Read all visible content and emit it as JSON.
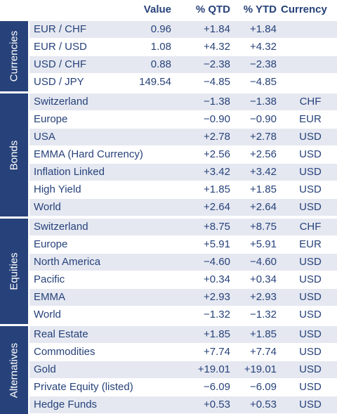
{
  "headers": {
    "value": "Value",
    "qtd": "% QTD",
    "ytd": "% YTD",
    "currency": "Currency"
  },
  "groups": [
    {
      "label": "Currencies",
      "rows": [
        {
          "name": "EUR / CHF",
          "value": "0.96",
          "qtd": "+1.84",
          "ytd": "+1.84",
          "currency": ""
        },
        {
          "name": "EUR / USD",
          "value": "1.08",
          "qtd": "+4.32",
          "ytd": "+4.32",
          "currency": ""
        },
        {
          "name": "USD / CHF",
          "value": "0.88",
          "qtd": "−2.38",
          "ytd": "−2.38",
          "currency": ""
        },
        {
          "name": "USD / JPY",
          "value": "149.54",
          "qtd": "−4.85",
          "ytd": "−4.85",
          "currency": ""
        }
      ]
    },
    {
      "label": "Bonds",
      "rows": [
        {
          "name": "Switzerland",
          "value": "",
          "qtd": "−1.38",
          "ytd": "−1.38",
          "currency": "CHF"
        },
        {
          "name": "Europe",
          "value": "",
          "qtd": "−0.90",
          "ytd": "−0.90",
          "currency": "EUR"
        },
        {
          "name": "USA",
          "value": "",
          "qtd": "+2.78",
          "ytd": "+2.78",
          "currency": "USD"
        },
        {
          "name": "EMMA (Hard Currency)",
          "value": "",
          "qtd": "+2.56",
          "ytd": "+2.56",
          "currency": "USD"
        },
        {
          "name": "Inflation Linked",
          "value": "",
          "qtd": "+3.42",
          "ytd": "+3.42",
          "currency": "USD"
        },
        {
          "name": "High Yield",
          "value": "",
          "qtd": "+1.85",
          "ytd": "+1.85",
          "currency": "USD"
        },
        {
          "name": "World",
          "value": "",
          "qtd": "+2.64",
          "ytd": "+2.64",
          "currency": "USD"
        }
      ]
    },
    {
      "label": "Equities",
      "rows": [
        {
          "name": "Switzerland",
          "value": "",
          "qtd": "+8.75",
          "ytd": "+8.75",
          "currency": "CHF"
        },
        {
          "name": "Europe",
          "value": "",
          "qtd": "+5.91",
          "ytd": "+5.91",
          "currency": "EUR"
        },
        {
          "name": "North America",
          "value": "",
          "qtd": "−4.60",
          "ytd": "−4.60",
          "currency": "USD"
        },
        {
          "name": "Pacific",
          "value": "",
          "qtd": "+0.34",
          "ytd": "+0.34",
          "currency": "USD"
        },
        {
          "name": "EMMA",
          "value": "",
          "qtd": "+2.93",
          "ytd": "+2.93",
          "currency": "USD"
        },
        {
          "name": "World",
          "value": "",
          "qtd": "−1.32",
          "ytd": "−1.32",
          "currency": "USD"
        }
      ]
    },
    {
      "label": "Alternatives",
      "rows": [
        {
          "name": "Real Estate",
          "value": "",
          "qtd": "+1.85",
          "ytd": "+1.85",
          "currency": "USD"
        },
        {
          "name": "Commodities",
          "value": "",
          "qtd": "+7.74",
          "ytd": "+7.74",
          "currency": "USD"
        },
        {
          "name": "Gold",
          "value": "",
          "qtd": "+19.01",
          "ytd": "+19.01",
          "currency": "USD"
        },
        {
          "name": "Private Equity (listed)",
          "value": "",
          "qtd": "−6.09",
          "ytd": "−6.09",
          "currency": "USD"
        },
        {
          "name": "Hedge Funds",
          "value": "",
          "qtd": "+0.53",
          "ytd": "+0.53",
          "currency": "USD"
        }
      ]
    }
  ]
}
